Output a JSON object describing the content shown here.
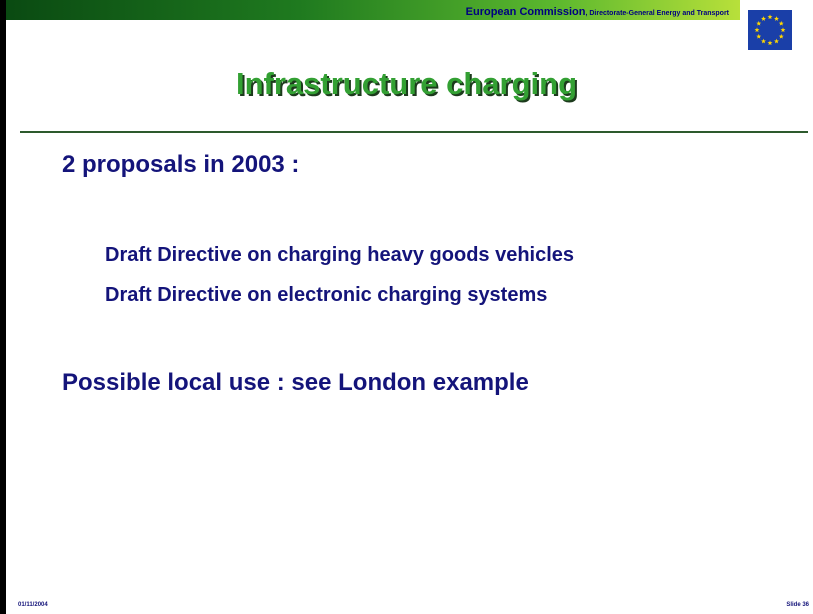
{
  "header": {
    "organization": "European Commission",
    "department": ", Directorate-General Energy and Transport"
  },
  "title": "Infrastructure charging",
  "body": {
    "heading": "2 proposals in 2003 :",
    "items": [
      "Draft Directive on charging heavy goods vehicles",
      "Draft Directive on electronic charging systems"
    ],
    "closing": "Possible local use : see London example"
  },
  "footer": {
    "date": "01/11/2004",
    "slide": "Slide 36"
  }
}
